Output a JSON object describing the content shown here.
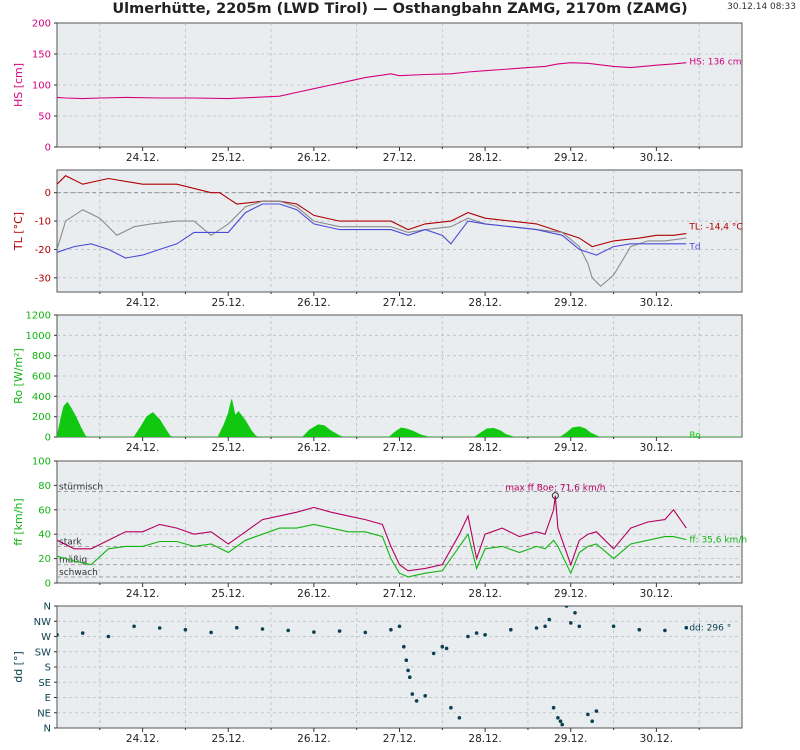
{
  "header": {
    "title": "Ulmerhütte, 2205m (LWD Tirol) — Osthangbahn ZAMG, 2170m (ZAMG)",
    "timestamp": "30.12.14 08:33"
  },
  "colors": {
    "hs": "#d6007e",
    "tl": "#b00000",
    "td": "#4a4ad8",
    "tl2": "#8c8c8c",
    "ro": "#11c811",
    "gust": "#b5005e",
    "ff": "#11b411",
    "dd": "#0b4050",
    "panel_bg": "#e9edf0"
  },
  "chart_data": [
    {
      "id": "hs",
      "type": "line",
      "ylabel": "HS [cm]",
      "ylim": [
        0,
        200
      ],
      "yticks": [
        "0",
        "50",
        "100",
        "150",
        "200"
      ],
      "xlim": [
        23.0,
        31.0
      ],
      "xticks": [
        "24.12.",
        "25.12.",
        "26.12.",
        "27.12.",
        "28.12.",
        "29.12.",
        "30.12."
      ],
      "annotations": [
        {
          "text": "HS: 136 cm",
          "x": 30.35,
          "y": 138
        }
      ],
      "series": [
        {
          "key": "hs",
          "color_key": "hs",
          "x": [
            23.0,
            23.1,
            23.3,
            23.5,
            23.8,
            24.2,
            24.6,
            25.0,
            25.3,
            25.6,
            25.8,
            26.0,
            26.2,
            26.4,
            26.6,
            26.75,
            26.9,
            27.0,
            27.3,
            27.6,
            27.8,
            28.0,
            28.2,
            28.5,
            28.7,
            28.85,
            29.0,
            29.2,
            29.5,
            29.7,
            30.0,
            30.2,
            30.35
          ],
          "y": [
            80,
            79,
            78,
            79,
            80,
            79,
            79,
            78,
            80,
            82,
            88,
            94,
            100,
            106,
            112,
            115,
            118,
            115,
            117,
            118,
            121,
            123,
            125,
            128,
            130,
            134,
            136,
            135,
            130,
            128,
            132,
            134,
            136
          ]
        }
      ]
    },
    {
      "id": "tl",
      "type": "line",
      "ylabel": "TL [°C]",
      "ylim": [
        -35,
        8
      ],
      "yticks": [
        "-30",
        "-20",
        "-10",
        "0"
      ],
      "zero_line": 0,
      "xlim": [
        23.0,
        31.0
      ],
      "xticks": [
        "24.12.",
        "25.12.",
        "26.12.",
        "27.12.",
        "28.12.",
        "29.12.",
        "30.12."
      ],
      "annotations": [
        {
          "text": "TL: -14,4 °C",
          "x": 30.35,
          "y": -12
        },
        {
          "text": "Td",
          "x": 30.35,
          "y": -19
        }
      ],
      "series": [
        {
          "key": "tl",
          "color_key": "tl",
          "x": [
            23.0,
            23.1,
            23.3,
            23.6,
            24.0,
            24.4,
            24.8,
            24.9,
            25.0,
            25.1,
            25.4,
            25.6,
            25.8,
            26.0,
            26.3,
            26.6,
            26.9,
            27.1,
            27.3,
            27.6,
            27.8,
            28.0,
            28.3,
            28.6,
            28.9,
            29.1,
            29.25,
            29.5,
            29.8,
            30.0,
            30.2,
            30.35
          ],
          "y": [
            3,
            6,
            3,
            5,
            3,
            3,
            0,
            0,
            -2,
            -4,
            -3,
            -3,
            -4,
            -8,
            -10,
            -10,
            -10,
            -13,
            -11,
            -10,
            -7,
            -9,
            -10,
            -11,
            -14,
            -16,
            -19,
            -17,
            -16,
            -15,
            -15,
            -14.4
          ]
        },
        {
          "key": "tl2",
          "color_key": "tl2",
          "x": [
            23.0,
            23.1,
            23.3,
            23.5,
            23.7,
            23.9,
            24.1,
            24.4,
            24.6,
            24.8,
            25.0,
            25.2,
            25.4,
            25.6,
            25.8,
            26.0,
            26.3,
            26.6,
            26.9,
            27.1,
            27.3,
            27.6,
            27.8,
            28.0,
            28.3,
            28.6,
            28.9,
            29.1,
            29.2,
            29.25,
            29.35,
            29.5,
            29.7,
            29.9,
            30.1,
            30.35
          ],
          "y": [
            -20,
            -10,
            -6,
            -9,
            -15,
            -12,
            -11,
            -10,
            -10,
            -15,
            -11,
            -5,
            -3,
            -3,
            -5,
            -10,
            -12,
            -12,
            -12,
            -14,
            -13,
            -12,
            -9,
            -11,
            -12,
            -13,
            -14,
            -19,
            -25,
            -30,
            -33,
            -29,
            -19,
            -17,
            -17,
            -16
          ]
        },
        {
          "key": "td",
          "color_key": "td",
          "x": [
            23.0,
            23.2,
            23.4,
            23.6,
            23.8,
            24.0,
            24.2,
            24.4,
            24.6,
            24.8,
            25.0,
            25.2,
            25.4,
            25.6,
            25.8,
            26.0,
            26.3,
            26.6,
            26.9,
            27.1,
            27.3,
            27.5,
            27.6,
            27.8,
            28.0,
            28.3,
            28.6,
            28.9,
            29.1,
            29.3,
            29.5,
            29.7,
            30.0,
            30.35
          ],
          "y": [
            -21,
            -19,
            -18,
            -20,
            -23,
            -22,
            -20,
            -18,
            -14,
            -14,
            -14,
            -7,
            -4,
            -4,
            -6,
            -11,
            -13,
            -13,
            -13,
            -15,
            -13,
            -15,
            -18,
            -10,
            -11,
            -12,
            -13,
            -15,
            -20,
            -22,
            -19,
            -18,
            -18,
            -18
          ]
        }
      ]
    },
    {
      "id": "ro",
      "type": "area",
      "ylabel": "Ro [W/m²]",
      "ylim": [
        0,
        1200
      ],
      "yticks": [
        "0",
        "200",
        "400",
        "600",
        "800",
        "1000",
        "1200"
      ],
      "xlim": [
        23.0,
        31.0
      ],
      "xticks": [
        "24.12.",
        "25.12.",
        "26.12.",
        "27.12.",
        "28.12.",
        "29.12.",
        "30.12."
      ],
      "annotations": [
        {
          "text": "Ro",
          "x": 30.35,
          "y": 20
        }
      ],
      "series": [
        {
          "key": "ro",
          "color_key": "ro",
          "x": [
            23.0,
            23.05,
            23.08,
            23.12,
            23.16,
            23.22,
            23.28,
            23.33,
            23.35,
            23.9,
            23.97,
            24.05,
            24.12,
            24.2,
            24.28,
            24.32,
            24.35,
            24.88,
            24.95,
            25.0,
            25.04,
            25.08,
            25.12,
            25.2,
            25.27,
            25.32,
            25.35,
            25.87,
            25.95,
            26.05,
            26.12,
            26.2,
            26.28,
            26.32,
            26.35,
            26.88,
            26.95,
            27.02,
            27.08,
            27.15,
            27.25,
            27.32,
            27.34,
            27.88,
            27.95,
            28.02,
            28.1,
            28.18,
            28.24,
            28.32,
            28.34,
            28.88,
            28.95,
            29.02,
            29.1,
            29.17,
            29.23,
            29.32,
            29.34,
            31.0
          ],
          "y": [
            0,
            200,
            300,
            340,
            290,
            200,
            90,
            10,
            0,
            0,
            90,
            200,
            240,
            170,
            60,
            10,
            0,
            0,
            120,
            230,
            370,
            210,
            250,
            160,
            60,
            10,
            0,
            0,
            70,
            120,
            110,
            60,
            20,
            5,
            0,
            0,
            50,
            90,
            80,
            60,
            20,
            5,
            0,
            0,
            40,
            80,
            85,
            60,
            25,
            5,
            0,
            0,
            40,
            90,
            100,
            80,
            40,
            5,
            0,
            0
          ]
        }
      ]
    },
    {
      "id": "ff",
      "type": "line",
      "ylabel": "ff [km/h]",
      "ylim": [
        0,
        100
      ],
      "yticks": [
        "0",
        "20",
        "40",
        "60",
        "80",
        "100"
      ],
      "xlim": [
        23.0,
        31.0
      ],
      "xticks": [
        "24.12.",
        "25.12.",
        "26.12.",
        "27.12.",
        "28.12.",
        "29.12.",
        "30.12."
      ],
      "reference_lines": [
        {
          "label": "stürmisch",
          "y": 75
        },
        {
          "label": "stark",
          "y": 30
        },
        {
          "label": "mäßig",
          "y": 15
        },
        {
          "label": "schwach",
          "y": 5
        }
      ],
      "annotations": [
        {
          "text": "max ff Boe: 71,6 km/h",
          "x": 28.82,
          "y": 71.6
        },
        {
          "text": "ff: 35,6 km/h",
          "x": 30.35,
          "y": 35.6
        }
      ],
      "series": [
        {
          "key": "gust",
          "color_key": "gust",
          "x": [
            23.0,
            23.2,
            23.4,
            23.6,
            23.8,
            24.0,
            24.2,
            24.4,
            24.6,
            24.8,
            25.0,
            25.2,
            25.4,
            25.6,
            25.8,
            26.0,
            26.2,
            26.4,
            26.6,
            26.8,
            26.9,
            27.0,
            27.1,
            27.3,
            27.5,
            27.7,
            27.8,
            27.9,
            28.0,
            28.2,
            28.4,
            28.6,
            28.7,
            28.8,
            28.82,
            28.85,
            29.0,
            29.1,
            29.2,
            29.3,
            29.5,
            29.7,
            29.9,
            30.1,
            30.2,
            30.35
          ],
          "y": [
            35,
            28,
            28,
            35,
            42,
            42,
            48,
            45,
            40,
            42,
            32,
            42,
            52,
            55,
            58,
            62,
            58,
            55,
            52,
            48,
            30,
            15,
            10,
            12,
            15,
            40,
            55,
            20,
            40,
            45,
            38,
            42,
            40,
            60,
            71.6,
            45,
            15,
            35,
            40,
            42,
            28,
            45,
            50,
            52,
            60,
            45
          ]
        },
        {
          "key": "ff",
          "color_key": "ff",
          "x": [
            23.0,
            23.2,
            23.4,
            23.6,
            23.8,
            24.0,
            24.2,
            24.4,
            24.6,
            24.8,
            25.0,
            25.2,
            25.4,
            25.6,
            25.8,
            26.0,
            26.2,
            26.4,
            26.6,
            26.8,
            26.9,
            27.0,
            27.1,
            27.3,
            27.5,
            27.7,
            27.8,
            27.9,
            28.0,
            28.2,
            28.4,
            28.6,
            28.7,
            28.8,
            28.85,
            29.0,
            29.1,
            29.2,
            29.3,
            29.5,
            29.7,
            29.9,
            30.1,
            30.2,
            30.35
          ],
          "y": [
            22,
            18,
            15,
            28,
            30,
            30,
            34,
            34,
            30,
            32,
            25,
            35,
            40,
            45,
            45,
            48,
            45,
            42,
            42,
            38,
            20,
            8,
            5,
            8,
            10,
            30,
            40,
            12,
            28,
            30,
            25,
            30,
            28,
            35,
            30,
            8,
            25,
            30,
            32,
            20,
            32,
            35,
            38,
            38,
            35.6
          ]
        }
      ]
    },
    {
      "id": "dd",
      "type": "scatter",
      "ylabel": "dd [°]",
      "ylim": [
        0,
        360
      ],
      "yticks": [
        "N",
        "NE",
        "E",
        "SE",
        "S",
        "SW",
        "W",
        "NW",
        "N"
      ],
      "xlim": [
        23.0,
        31.0
      ],
      "xticks": [
        "24.12.",
        "25.12.",
        "26.12.",
        "27.12.",
        "28.12.",
        "29.12.",
        "30.12."
      ],
      "annotations": [
        {
          "text": "dd: 296 °",
          "x": 30.35,
          "y": 296
        }
      ],
      "series": [
        {
          "key": "dd",
          "color_key": "dd",
          "x": [
            23.0,
            23.3,
            23.6,
            23.9,
            24.2,
            24.5,
            24.8,
            25.1,
            25.4,
            25.7,
            26.0,
            26.3,
            26.6,
            26.9,
            27.0,
            27.05,
            27.08,
            27.1,
            27.12,
            27.15,
            27.2,
            27.3,
            27.4,
            27.5,
            27.55,
            27.6,
            27.7,
            27.8,
            27.9,
            28.0,
            28.3,
            28.6,
            28.7,
            28.75,
            28.8,
            28.85,
            28.88,
            28.9,
            28.95,
            29.0,
            29.05,
            29.1,
            29.2,
            29.25,
            29.3,
            29.5,
            29.8,
            30.1,
            30.35
          ],
          "y": [
            275,
            280,
            270,
            300,
            295,
            290,
            282,
            296,
            292,
            288,
            283,
            286,
            282,
            290,
            300,
            240,
            200,
            170,
            150,
            100,
            80,
            95,
            220,
            240,
            235,
            60,
            30,
            270,
            280,
            275,
            290,
            295,
            300,
            320,
            60,
            30,
            20,
            10,
            360,
            310,
            340,
            300,
            40,
            20,
            50,
            300,
            290,
            288,
            296
          ]
        }
      ]
    }
  ]
}
